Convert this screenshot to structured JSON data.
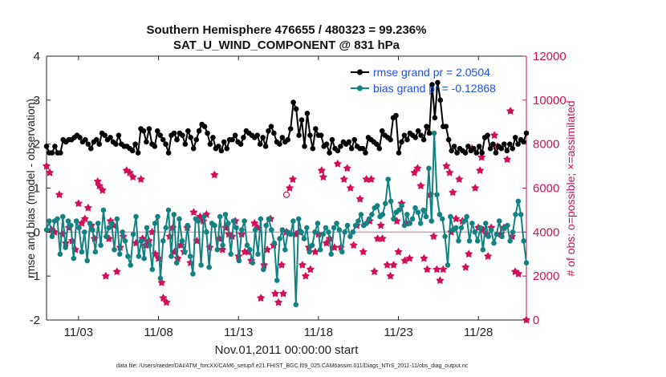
{
  "chart_data": {
    "type": "line",
    "title": "Southern Hemisphere 476655 / 480323 = 99.236%",
    "subtitle": "SAT_U_WIND_COMPONENT @ 831 hPa",
    "xlabel": "Nov.01,2011 00:00:00 start",
    "ylabel": "rmse and bias (model - observation)",
    "ylabel_right": "# of obs: o=possible; ×=assimilated",
    "footnote": "data file: /Users/raeder/DAI/ATM_forcXX/CAM6_setup/f.e21.FHIST_BGC.f09_025.CAM6assim.011/Diags_NTrS_2011-11/obs_diag_output.nc",
    "x_ticks": [
      3,
      8,
      13,
      18,
      23,
      28
    ],
    "x_tick_labels": [
      "11/03",
      "11/08",
      "11/13",
      "11/18",
      "11/23",
      "11/28"
    ],
    "xlim": [
      1,
      31
    ],
    "ylim": [
      -2,
      4
    ],
    "y_ticks": [
      -2,
      -1,
      0,
      1,
      2,
      3,
      4
    ],
    "y_tick_labels": [
      "-2",
      "-1",
      "0",
      "1",
      "2",
      "3",
      "4"
    ],
    "ylim_right": [
      0,
      12000
    ],
    "y_ticks_right": [
      0,
      2000,
      4000,
      6000,
      8000,
      10000,
      12000
    ],
    "y_tick_labels_right": [
      "0",
      "2000",
      "4000",
      "6000",
      "8000",
      "10000",
      "12000"
    ],
    "legend_position": "top-right",
    "series": [
      {
        "name": "rmse grand pr = 2.0504",
        "color": "#000000",
        "marker": "circle",
        "axis": "left",
        "values": [
          1.95,
          1.8,
          1.8,
          1.95,
          1.8,
          1.8,
          2.1,
          2.05,
          2.1,
          2.1,
          2.15,
          2.2,
          2.15,
          2.05,
          2.1,
          2.0,
          1.9,
          2.05,
          2.1,
          2.0,
          2.25,
          2.2,
          2.1,
          2.15,
          2.05,
          2.0,
          2.2,
          2.0,
          1.95,
          1.95,
          1.9,
          1.85,
          2.0,
          1.8,
          2.35,
          2.3,
          2.05,
          2.35,
          2.0,
          1.95,
          2.3,
          2.2,
          2.1,
          2.0,
          1.8,
          2.2,
          2.25,
          2.1,
          2.25,
          2.2,
          2.0,
          2.3,
          2.15,
          1.9,
          2.1,
          2.3,
          2.45,
          2.4,
          2.25,
          2.0,
          2.15,
          1.9,
          1.95,
          1.85,
          2.05,
          1.9,
          2.1,
          2.1,
          2.2,
          2.05,
          2.0,
          2.15,
          2.3,
          2.25,
          2.2,
          2.15,
          2.2,
          2.0,
          2.15,
          1.95,
          2.3,
          2.4,
          2.25,
          2.05,
          2.0,
          2.15,
          2.05,
          2.1,
          2.35,
          2.95,
          2.8,
          2.2,
          2.55,
          1.95,
          2.7,
          2.2,
          1.9,
          2.35,
          2.2,
          2.2,
          1.95,
          2.0,
          1.8,
          2.1,
          1.9,
          1.85,
          1.95,
          2.05,
          2.0,
          2.05,
          1.9,
          2.1,
          1.95,
          1.9,
          1.9,
          1.8,
          2.15,
          2.1,
          2.05,
          2.0,
          1.9,
          2.3,
          2.2,
          2.15,
          2.1,
          2.6,
          2.65,
          1.8,
          2.05,
          2.2,
          2.1,
          2.25,
          2.2,
          2.15,
          2.3,
          2.2,
          2.1,
          2.4,
          2.25,
          3.35,
          2.6,
          3.4,
          3.0,
          2.4,
          2.4,
          2.1,
          1.85,
          1.95,
          1.8,
          1.9,
          1.85,
          1.8,
          1.95,
          1.85,
          1.9,
          1.8,
          1.95,
          1.8,
          2.15,
          2.2,
          1.9,
          2.0,
          1.8,
          1.95,
          1.9,
          2.0,
          1.85,
          2.0,
          1.9,
          2.15,
          2.0,
          2.1,
          2.05,
          2.25
        ],
        "axis_note": "x values evenly spaced from 1.0 to 31.0"
      },
      {
        "name": "bias grand pr = -0.12868",
        "color": "#148282",
        "marker": "circle",
        "axis": "left",
        "values": [
          0.05,
          0.25,
          -0.1,
          0.25,
          0.3,
          -0.5,
          0.35,
          -0.35,
          0.25,
          0.15,
          -0.6,
          0.25,
          0.1,
          -0.45,
          0.0,
          -0.65,
          0.2,
          0.05,
          -0.45,
          0.2,
          -0.3,
          0.5,
          -0.1,
          0.1,
          0.2,
          -0.4,
          0.3,
          -0.5,
          0.0,
          -0.2,
          -0.55,
          -0.75,
          -0.05,
          0.35,
          -0.55,
          -0.2,
          -0.6,
          0.1,
          -0.3,
          -0.85,
          0.2,
          0.35,
          -1.05,
          -0.2,
          0.1,
          0.5,
          -0.55,
          0.4,
          -0.7,
          0.3,
          -0.2,
          -0.45,
          0.15,
          -0.55,
          -0.95,
          0.3,
          0.25,
          -0.75,
          0.35,
          0.0,
          -0.8,
          0.2,
          0.15,
          -0.4,
          0.35,
          -0.3,
          0.4,
          0.2,
          -0.5,
          0.25,
          0.1,
          -0.65,
          0.05,
          0.25,
          -0.3,
          -0.4,
          -0.7,
          0.05,
          -0.5,
          0.3,
          -0.85,
          0.15,
          0.3,
          0.05,
          -0.25,
          -1.1,
          -0.15,
          0.05,
          -0.4,
          0.0,
          -0.05,
          0.25,
          -1.65,
          0.3,
          0.0,
          -0.15,
          0.1,
          -0.45,
          -0.3,
          0.0,
          0.2,
          -0.4,
          -0.05,
          0.1,
          0.0,
          -0.5,
          0.1,
          0.2,
          0.05,
          -0.45,
          0.0,
          0.15,
          -0.1,
          0.0,
          0.15,
          0.25,
          0.4,
          0.15,
          0.2,
          0.3,
          0.4,
          0.55,
          0.6,
          0.35,
          0.4,
          0.65,
          1.2,
          0.7,
          0.3,
          0.45,
          0.5,
          0.6,
          0.15,
          0.4,
          0.2,
          0.3,
          0.55,
          0.45,
          0.2,
          0.5,
          0.35,
          1.45,
          0.25,
          2.25,
          0.85,
          0.4,
          0.3,
          -0.1,
          -0.75,
          0.35,
          0.05,
          0.1,
          -0.2,
          0.1,
          0.25,
          0.35,
          -0.2,
          0.2,
          0.0,
          -0.2,
          0.1,
          -0.4,
          0.2,
          -0.1,
          0.05,
          -0.25,
          -0.05,
          0.25,
          -0.1,
          0.1,
          0.15,
          -0.2,
          0.0,
          0.4,
          0.7,
          0.4,
          -0.2,
          -0.7
        ],
        "axis_note": "x values evenly spaced from 1.0 to 31.0"
      },
      {
        "name": "# obs assimilated (×)",
        "color": "#d2105a",
        "marker": "star",
        "axis": "right",
        "points": [
          [
            1.0,
            7000
          ],
          [
            1.2,
            6700
          ],
          [
            1.3,
            4100
          ],
          [
            1.5,
            4000
          ],
          [
            1.8,
            5700
          ],
          [
            2.0,
            3900
          ],
          [
            2.2,
            3500
          ],
          [
            2.4,
            4200
          ],
          [
            2.6,
            3600
          ],
          [
            2.8,
            3200
          ],
          [
            3.0,
            5300
          ],
          [
            3.2,
            4400
          ],
          [
            3.4,
            4600
          ],
          [
            3.6,
            5100
          ],
          [
            3.8,
            4300
          ],
          [
            4.0,
            3700
          ],
          [
            4.2,
            6300
          ],
          [
            4.3,
            6100
          ],
          [
            4.5,
            5900
          ],
          [
            4.7,
            2000
          ],
          [
            4.9,
            3700
          ],
          [
            5.0,
            4500
          ],
          [
            5.2,
            4300
          ],
          [
            5.4,
            2200
          ],
          [
            5.6,
            3300
          ],
          [
            5.8,
            3800
          ],
          [
            6.0,
            6800
          ],
          [
            6.2,
            6700
          ],
          [
            6.4,
            6500
          ],
          [
            6.6,
            3500
          ],
          [
            6.9,
            6400
          ],
          [
            7.0,
            3700
          ],
          [
            7.2,
            3400
          ],
          [
            7.4,
            3600
          ],
          [
            7.6,
            4000
          ],
          [
            7.8,
            3000
          ],
          [
            8.0,
            2800
          ],
          [
            8.2,
            1700
          ],
          [
            8.3,
            1000
          ],
          [
            8.5,
            800
          ],
          [
            8.7,
            3800
          ],
          [
            8.9,
            4200
          ],
          [
            9.0,
            3100
          ],
          [
            9.2,
            2800
          ],
          [
            9.4,
            3400
          ],
          [
            9.6,
            3100
          ],
          [
            9.8,
            4200
          ],
          [
            10.0,
            2600
          ],
          [
            10.2,
            4900
          ],
          [
            10.4,
            3600
          ],
          [
            10.6,
            4700
          ],
          [
            10.8,
            4500
          ],
          [
            11.0,
            4800
          ],
          [
            11.2,
            3300
          ],
          [
            11.5,
            6600
          ],
          [
            11.8,
            3700
          ],
          [
            12.0,
            3200
          ],
          [
            12.2,
            4200
          ],
          [
            12.4,
            3900
          ],
          [
            12.6,
            3800
          ],
          [
            12.8,
            4500
          ],
          [
            13.0,
            2900
          ],
          [
            13.2,
            3900
          ],
          [
            13.4,
            3100
          ],
          [
            13.6,
            3100
          ],
          [
            13.8,
            2700
          ],
          [
            14.0,
            4400
          ],
          [
            14.2,
            4200
          ],
          [
            14.4,
            1000
          ],
          [
            14.6,
            2500
          ],
          [
            14.8,
            3200
          ],
          [
            15.0,
            4600
          ],
          [
            15.2,
            3400
          ],
          [
            15.3,
            1200
          ],
          [
            15.5,
            800
          ],
          [
            15.7,
            2500
          ],
          [
            15.8,
            1200
          ],
          [
            16.0,
            4000
          ],
          [
            16.2,
            6000
          ],
          [
            16.4,
            6400
          ],
          [
            16.6,
            3900
          ],
          [
            16.8,
            4000
          ],
          [
            17.0,
            2500
          ],
          [
            17.2,
            2000
          ],
          [
            17.4,
            3300
          ],
          [
            17.5,
            2300
          ],
          [
            17.8,
            3100
          ],
          [
            18.0,
            3900
          ],
          [
            18.2,
            6800
          ],
          [
            18.3,
            6500
          ],
          [
            18.5,
            3500
          ],
          [
            18.7,
            3700
          ],
          [
            19.0,
            3300
          ],
          [
            19.2,
            7100
          ],
          [
            19.4,
            3300
          ],
          [
            19.6,
            6400
          ],
          [
            19.8,
            6900
          ],
          [
            20.0,
            6000
          ],
          [
            20.2,
            3400
          ],
          [
            20.4,
            4300
          ],
          [
            20.6,
            5500
          ],
          [
            20.8,
            3100
          ],
          [
            21.0,
            6400
          ],
          [
            21.2,
            4500
          ],
          [
            21.3,
            6400
          ],
          [
            21.5,
            2200
          ],
          [
            21.7,
            3700
          ],
          [
            21.9,
            4300
          ],
          [
            22.0,
            3700
          ],
          [
            22.3,
            2500
          ],
          [
            22.5,
            2000
          ],
          [
            22.7,
            2500
          ],
          [
            22.9,
            4500
          ],
          [
            23.0,
            3100
          ],
          [
            23.2,
            5300
          ],
          [
            23.4,
            2700
          ],
          [
            23.5,
            4400
          ],
          [
            23.7,
            2800
          ],
          [
            24.0,
            6700
          ],
          [
            24.2,
            6900
          ],
          [
            24.4,
            6100
          ],
          [
            24.6,
            2800
          ],
          [
            24.8,
            2300
          ],
          [
            25.0,
            5700
          ],
          [
            25.2,
            3800
          ],
          [
            25.4,
            2300
          ],
          [
            25.6,
            1800
          ],
          [
            25.8,
            2300
          ],
          [
            26.0,
            7000
          ],
          [
            26.2,
            6700
          ],
          [
            26.3,
            4000
          ],
          [
            26.4,
            5800
          ],
          [
            26.6,
            4600
          ],
          [
            26.8,
            6400
          ],
          [
            27.0,
            4500
          ],
          [
            27.2,
            2400
          ],
          [
            27.4,
            3000
          ],
          [
            27.6,
            7800
          ],
          [
            27.8,
            6000
          ],
          [
            28.0,
            4200
          ],
          [
            28.1,
            6800
          ],
          [
            28.2,
            7400
          ],
          [
            28.3,
            4100
          ],
          [
            28.5,
            3900
          ],
          [
            28.6,
            2900
          ],
          [
            28.8,
            4200
          ],
          [
            29.0,
            8400
          ],
          [
            29.2,
            7900
          ],
          [
            29.4,
            3900
          ],
          [
            29.6,
            4200
          ],
          [
            29.8,
            7300
          ],
          [
            30.0,
            9500
          ],
          [
            30.1,
            3800
          ],
          [
            30.3,
            2200
          ],
          [
            30.5,
            2100
          ],
          [
            31.0,
            0
          ]
        ]
      },
      {
        "name": "# obs possible (o)",
        "color": "#d2105a",
        "marker": "circle-open",
        "axis": "right",
        "points": [
          [
            16.0,
            5700
          ]
        ]
      }
    ],
    "legend": [
      {
        "label": "rmse grand pr = 2.0504",
        "color": "#000000"
      },
      {
        "label": "bias grand pr = -0.12868",
        "color": "#148282"
      }
    ]
  }
}
